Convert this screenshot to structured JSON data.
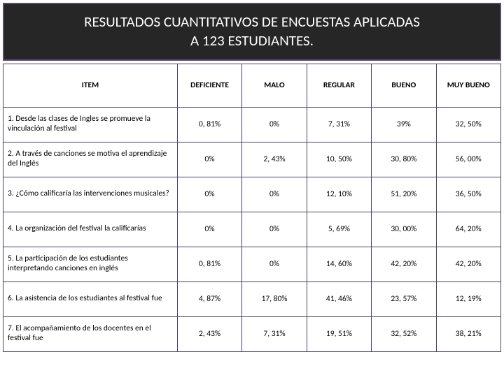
{
  "title_line1": "RESULTADOS CUANTITATIVOS DE ENCUESTAS APLICADAS",
  "title_line2": "A 123  ESTUDIANTES.",
  "table": {
    "columns": [
      "ITEM",
      "DEFICIENTE",
      "MALO",
      "REGULAR",
      "BUENO",
      "MUY BUENO"
    ],
    "rows": [
      {
        "item": "1. Desde las clases de Ingles se promueve la vinculación al festival",
        "values": [
          "0, 81%",
          "0%",
          "7, 31%",
          "39%",
          "32, 50%"
        ]
      },
      {
        "item": "2. A través de canciones  se motiva el aprendizaje del Inglés",
        "values": [
          "0%",
          "2, 43%",
          "10, 50%",
          "30, 80%",
          "56, 00%"
        ]
      },
      {
        "item": "3. ¿Cómo calificaría las intervenciones musicales?",
        "values": [
          "0%",
          "0%",
          "12, 10%",
          "51, 20%",
          "36, 50%"
        ]
      },
      {
        "item": "4. La organización del festival la calificarías",
        "values": [
          "0%",
          "0%",
          "5, 69%",
          "30, 00%",
          "64, 20%"
        ]
      },
      {
        "item": "5. La participación de los estudiantes interpretando canciones en inglés",
        "values": [
          "0, 81%",
          "0%",
          "14, 60%",
          "42, 20%",
          "42, 20%"
        ]
      },
      {
        "item": "6. La asistencia de los estudiantes al festival fue",
        "values": [
          "4, 87%",
          "17, 80%",
          "41, 46%",
          "23, 57%",
          "12, 19%"
        ]
      },
      {
        "item": "7. El acompañamiento de los docentes en el festival fue",
        "values": [
          "2, 43%",
          "7, 31%",
          "19, 51%",
          "32, 52%",
          "38, 21%"
        ]
      }
    ],
    "border_color": "#4a3d6b",
    "header_bg": "#262626",
    "header_text_color": "#ffffff",
    "body_bg": "#ffffff",
    "body_text_color": "#000000",
    "font_family": "Calibri, Arial, sans-serif",
    "title_fontsize": 21,
    "cell_fontsize": 11.5,
    "col_widths_pct": [
      35,
      13,
      13,
      13,
      13,
      13
    ]
  }
}
